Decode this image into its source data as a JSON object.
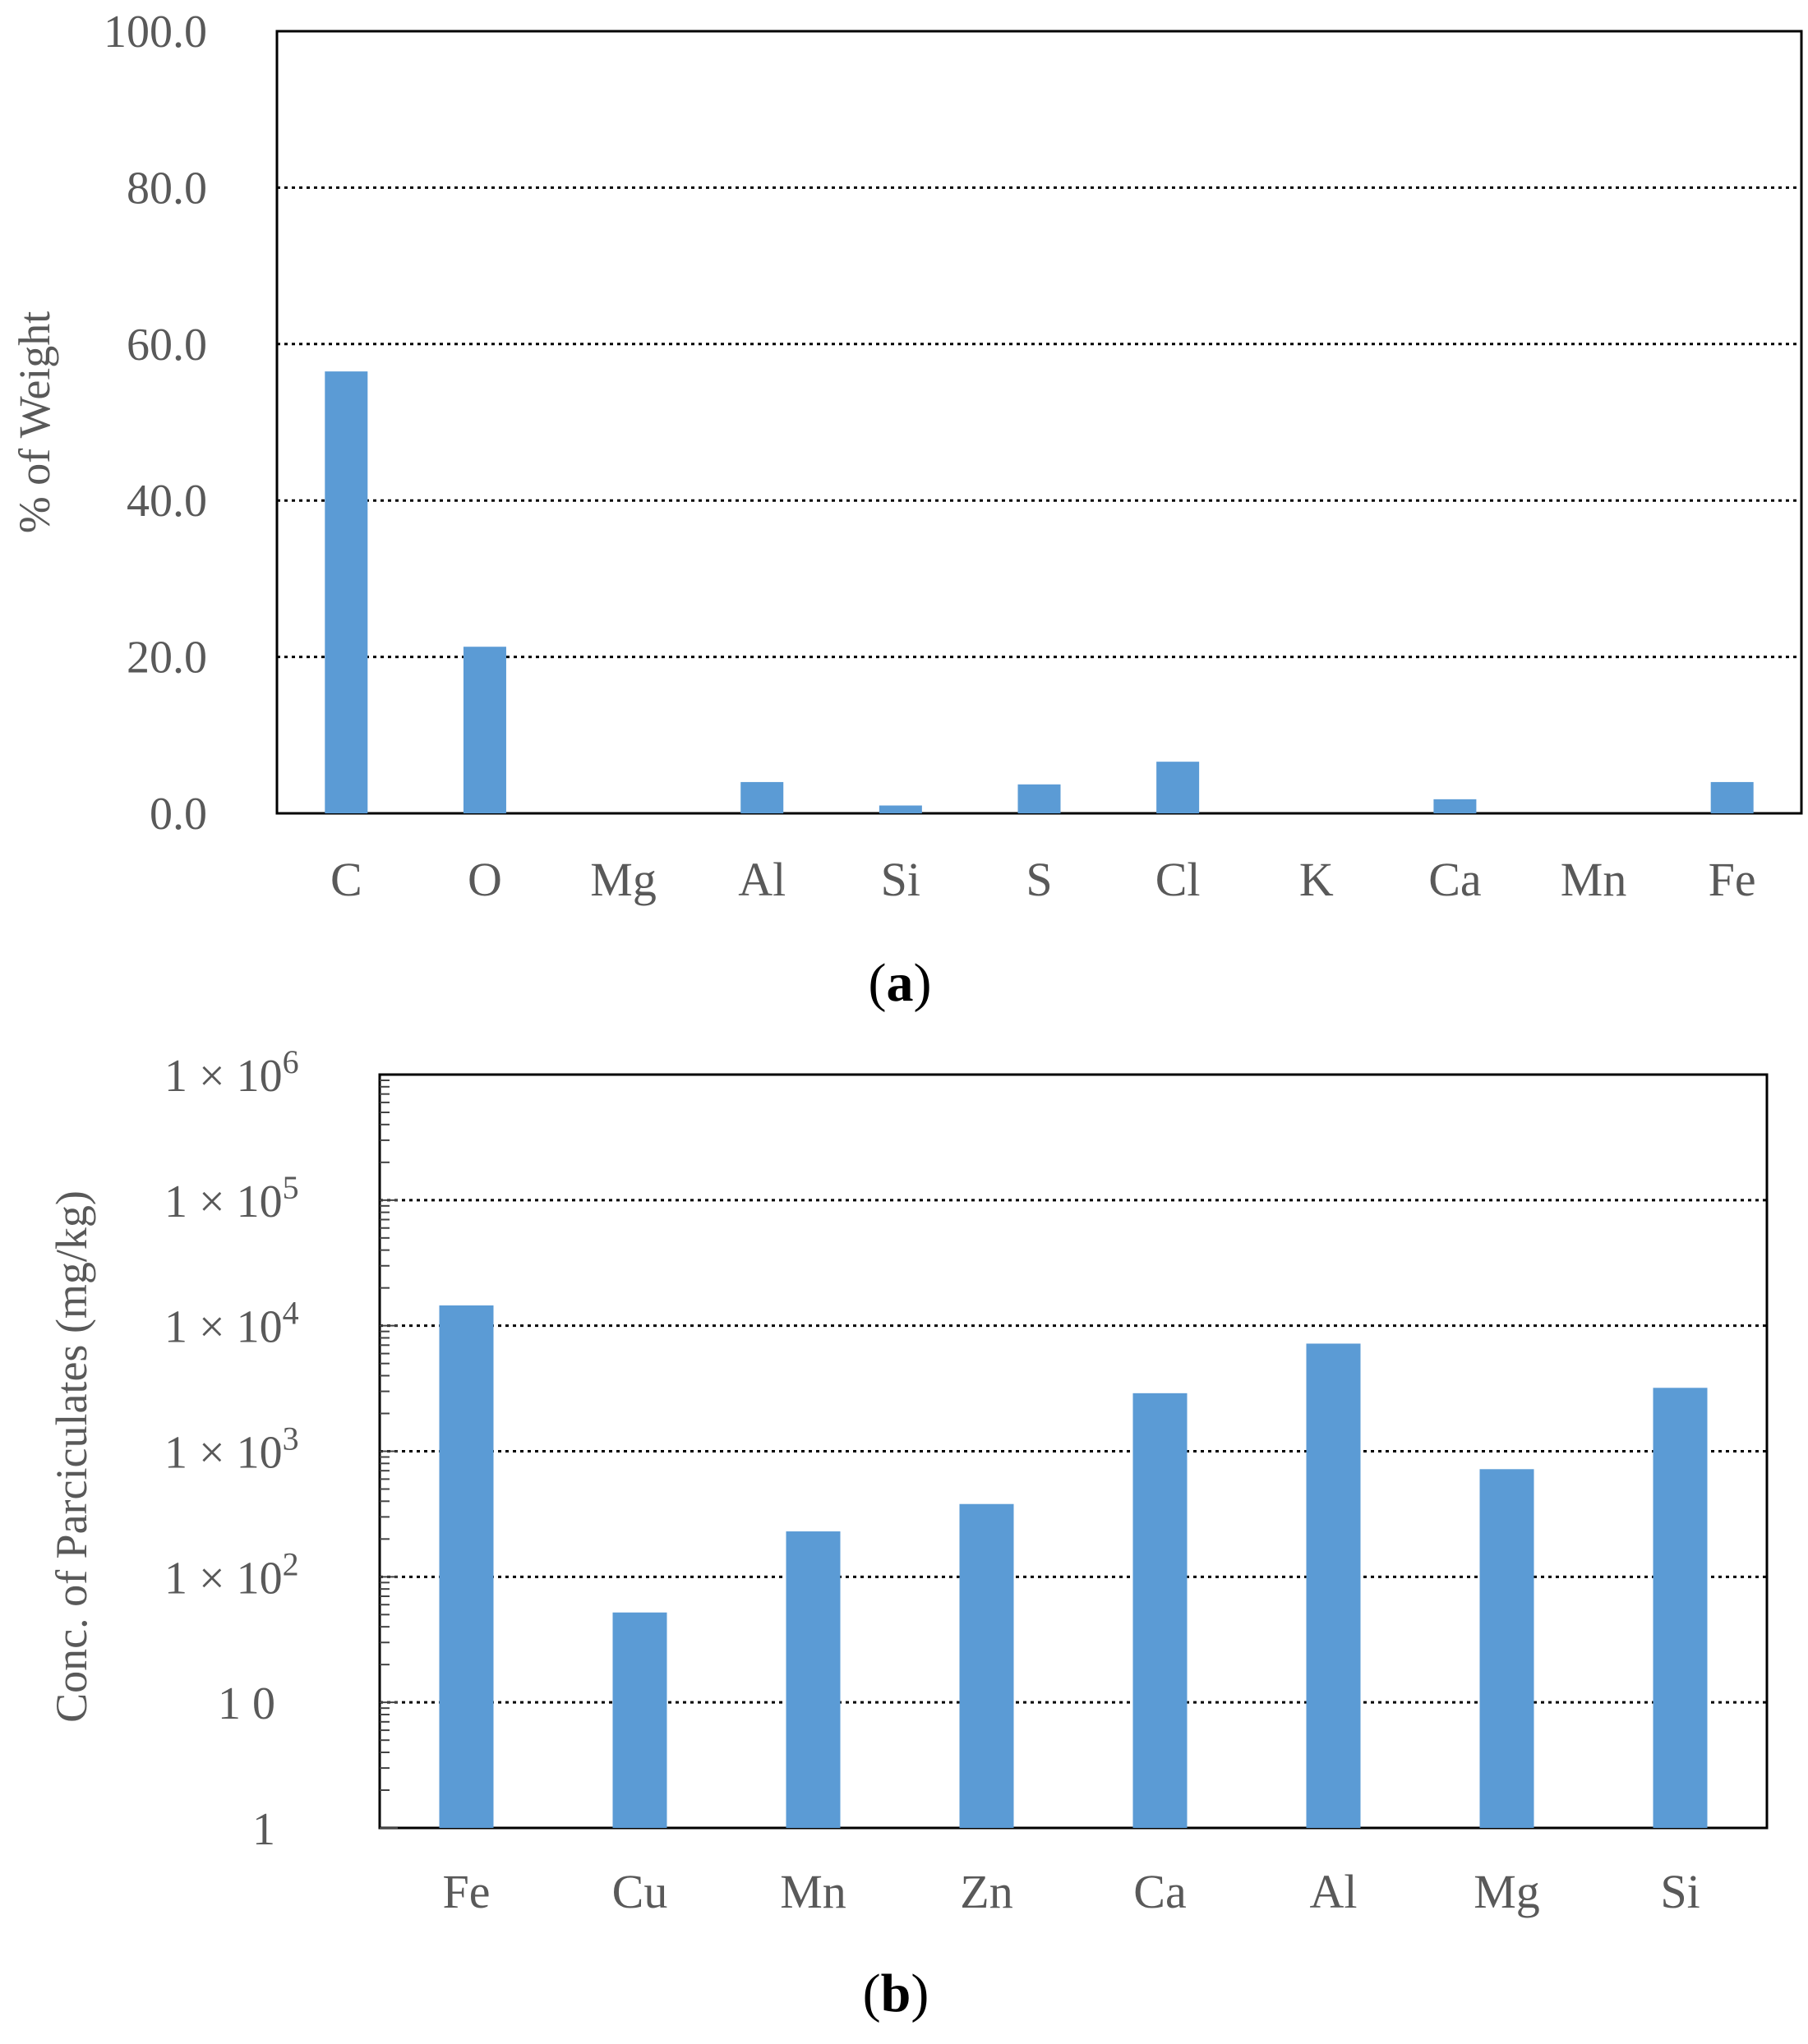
{
  "chart_data": [
    {
      "type": "bar",
      "panel_label": "a",
      "categories": [
        "C",
        "O",
        "Mg",
        "Al",
        "Si",
        "S",
        "Cl",
        "K",
        "Ca",
        "Mn",
        "Fe"
      ],
      "values": [
        56.5,
        21.3,
        0,
        4.0,
        1.0,
        3.7,
        6.6,
        0,
        1.8,
        0,
        4.0
      ],
      "ylabel": "% of Weight",
      "xlabel": "",
      "ylim": [
        0,
        100
      ],
      "yticks": [
        "0.0",
        "20.0",
        "40.0",
        "60.0",
        "80.0",
        "100.0"
      ],
      "grid": true,
      "bar_color": "#5B9BD5"
    },
    {
      "type": "bar",
      "panel_label": "b",
      "scale": "log",
      "categories": [
        "Fe",
        "Cu",
        "Mn",
        "Zn",
        "Ca",
        "Al",
        "Mg",
        "Si"
      ],
      "values": [
        14500,
        52,
        230,
        380,
        2900,
        7200,
        720,
        3200
      ],
      "ylabel": "Conc. of Parciculates  (mg/kg)",
      "xlabel": "",
      "ylim": [
        1,
        1000000
      ],
      "yticks": [
        {
          "text": "1"
        },
        {
          "text": "1 0"
        },
        {
          "base": "1 × 10",
          "exp": "2"
        },
        {
          "base": "1 × 10",
          "exp": "3"
        },
        {
          "base": "1 × 10",
          "exp": "4"
        },
        {
          "base": "1 × 10",
          "exp": "5"
        },
        {
          "base": "1 × 10",
          "exp": "6"
        }
      ],
      "grid": true,
      "bar_color": "#5B9BD5"
    }
  ]
}
